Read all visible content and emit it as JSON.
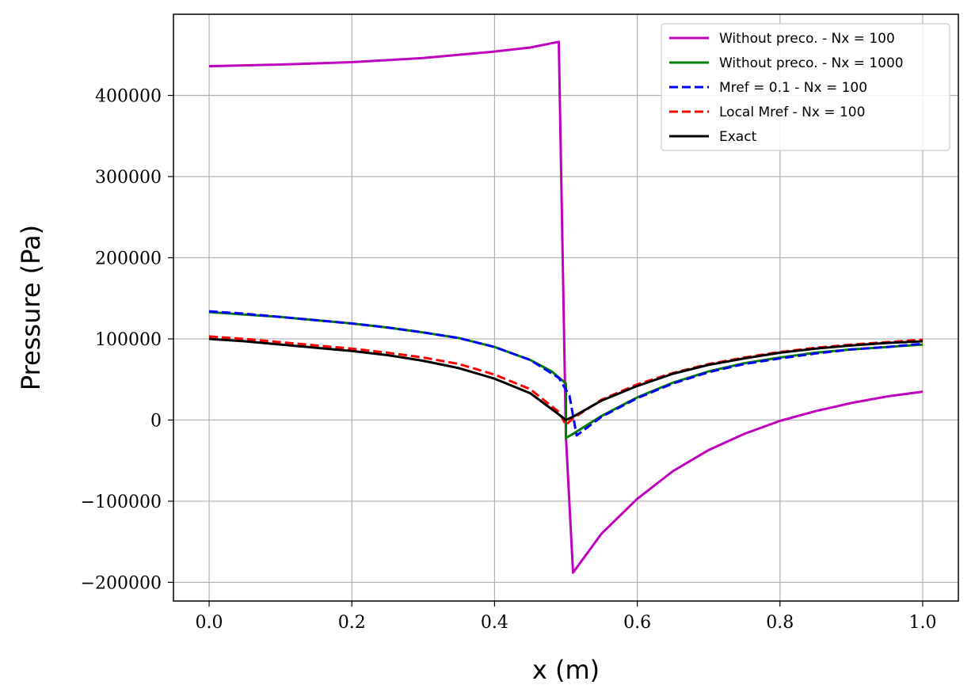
{
  "chart_data": {
    "type": "line",
    "title": "",
    "xlabel": "x (m)",
    "ylabel": "Pressure (Pa)",
    "xlim": [
      -0.05,
      1.05
    ],
    "ylim": [
      -223000,
      500000
    ],
    "xticks": [
      0.0,
      0.2,
      0.4,
      0.6,
      0.8,
      1.0
    ],
    "xtick_labels": [
      "0.0",
      "0.2",
      "0.4",
      "0.6",
      "0.8",
      "1.0"
    ],
    "yticks": [
      -200000,
      -100000,
      0,
      100000,
      200000,
      300000,
      400000
    ],
    "ytick_labels": [
      "−200000",
      "−100000",
      "0",
      "100000",
      "200000",
      "300000",
      "400000"
    ],
    "grid": true,
    "legend_position": "top-right",
    "series": [
      {
        "name": "Without preco. - Nx = 100",
        "color": "#bf00bf",
        "style": "solid",
        "points": [
          [
            0.0,
            436000
          ],
          [
            0.1,
            438000
          ],
          [
            0.2,
            441000
          ],
          [
            0.3,
            446000
          ],
          [
            0.4,
            454000
          ],
          [
            0.45,
            459000
          ],
          [
            0.49,
            466000
          ],
          [
            0.5,
            -20000
          ],
          [
            0.51,
            -188000
          ],
          [
            0.55,
            -140000
          ],
          [
            0.6,
            -97000
          ],
          [
            0.65,
            -63000
          ],
          [
            0.7,
            -37000
          ],
          [
            0.75,
            -17000
          ],
          [
            0.8,
            -1000
          ],
          [
            0.85,
            11000
          ],
          [
            0.9,
            21000
          ],
          [
            0.95,
            29000
          ],
          [
            1.0,
            35000
          ]
        ]
      },
      {
        "name": "Without preco. - Nx = 1000",
        "color": "#008000",
        "style": "solid",
        "points": [
          [
            0.0,
            133000
          ],
          [
            0.05,
            130000
          ],
          [
            0.1,
            127000
          ],
          [
            0.15,
            123000
          ],
          [
            0.2,
            119000
          ],
          [
            0.25,
            114000
          ],
          [
            0.3,
            108000
          ],
          [
            0.35,
            101000
          ],
          [
            0.4,
            90000
          ],
          [
            0.45,
            74000
          ],
          [
            0.48,
            60000
          ],
          [
            0.5,
            45000
          ],
          [
            0.5,
            -22000
          ],
          [
            0.51,
            -17000
          ],
          [
            0.55,
            5000
          ],
          [
            0.6,
            28000
          ],
          [
            0.65,
            46000
          ],
          [
            0.7,
            60000
          ],
          [
            0.75,
            70000
          ],
          [
            0.8,
            77000
          ],
          [
            0.85,
            83000
          ],
          [
            0.9,
            87000
          ],
          [
            0.95,
            90000
          ],
          [
            1.0,
            93000
          ]
        ]
      },
      {
        "name": "Mref = 0.1 - Nx = 100",
        "color": "#0000ff",
        "style": "dashed",
        "points": [
          [
            0.0,
            134000
          ],
          [
            0.05,
            131000
          ],
          [
            0.1,
            127000
          ],
          [
            0.15,
            123000
          ],
          [
            0.2,
            119000
          ],
          [
            0.25,
            114000
          ],
          [
            0.3,
            108000
          ],
          [
            0.35,
            101000
          ],
          [
            0.4,
            90000
          ],
          [
            0.45,
            74000
          ],
          [
            0.49,
            52000
          ],
          [
            0.505,
            30000
          ],
          [
            0.515,
            -19000
          ],
          [
            0.55,
            4000
          ],
          [
            0.6,
            27000
          ],
          [
            0.65,
            45000
          ],
          [
            0.7,
            59000
          ],
          [
            0.75,
            69000
          ],
          [
            0.8,
            76000
          ],
          [
            0.85,
            82000
          ],
          [
            0.9,
            87000
          ],
          [
            0.95,
            90000
          ],
          [
            1.0,
            94000
          ]
        ]
      },
      {
        "name": "Local Mref - Nx = 100",
        "color": "#ff0000",
        "style": "dashed",
        "points": [
          [
            0.0,
            103000
          ],
          [
            0.05,
            100000
          ],
          [
            0.1,
            96000
          ],
          [
            0.15,
            92000
          ],
          [
            0.2,
            88000
          ],
          [
            0.25,
            83000
          ],
          [
            0.3,
            77000
          ],
          [
            0.35,
            69000
          ],
          [
            0.4,
            56000
          ],
          [
            0.45,
            38000
          ],
          [
            0.49,
            10000
          ],
          [
            0.5,
            -6000
          ],
          [
            0.51,
            2000
          ],
          [
            0.55,
            25000
          ],
          [
            0.6,
            44000
          ],
          [
            0.65,
            58000
          ],
          [
            0.7,
            69000
          ],
          [
            0.75,
            77000
          ],
          [
            0.8,
            84000
          ],
          [
            0.85,
            89000
          ],
          [
            0.9,
            93000
          ],
          [
            0.95,
            96000
          ],
          [
            1.0,
            99000
          ]
        ]
      },
      {
        "name": "Exact",
        "color": "#000000",
        "style": "solid",
        "points": [
          [
            0.0,
            100000
          ],
          [
            0.05,
            97000
          ],
          [
            0.1,
            93000
          ],
          [
            0.15,
            89000
          ],
          [
            0.2,
            85000
          ],
          [
            0.25,
            80000
          ],
          [
            0.3,
            73000
          ],
          [
            0.35,
            64000
          ],
          [
            0.4,
            51000
          ],
          [
            0.45,
            33000
          ],
          [
            0.49,
            7000
          ],
          [
            0.5,
            0
          ],
          [
            0.51,
            4000
          ],
          [
            0.55,
            24000
          ],
          [
            0.6,
            42000
          ],
          [
            0.65,
            57000
          ],
          [
            0.7,
            68000
          ],
          [
            0.75,
            76000
          ],
          [
            0.8,
            83000
          ],
          [
            0.85,
            88000
          ],
          [
            0.9,
            92000
          ],
          [
            0.95,
            95000
          ],
          [
            1.0,
            97000
          ]
        ]
      }
    ]
  }
}
